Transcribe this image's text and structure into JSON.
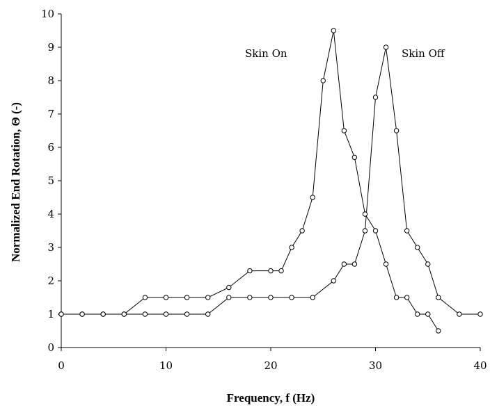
{
  "chart_data": {
    "type": "line",
    "title": "",
    "xlabel": "Frequency, f (Hz)",
    "ylabel": "Normalized End Rotation, Θ (-)",
    "xlim": [
      0,
      40
    ],
    "ylim": [
      0,
      10
    ],
    "xticks": [
      0,
      10,
      20,
      30,
      40
    ],
    "yticks": [
      0,
      1,
      2,
      3,
      4,
      5,
      6,
      7,
      8,
      9,
      10
    ],
    "grid": false,
    "legend": "none",
    "annotations": [
      {
        "text": "Skin On",
        "series": 0
      },
      {
        "text": "Skin Off",
        "series": 1
      }
    ],
    "series": [
      {
        "x": [
          0,
          2,
          4,
          6,
          8,
          10,
          12,
          14,
          16,
          18,
          20,
          21,
          22,
          23,
          24,
          25,
          26,
          27,
          28,
          29,
          30,
          31,
          32,
          33,
          34,
          35,
          36
        ],
        "y": [
          1,
          1,
          1,
          1,
          1.5,
          1.5,
          1.5,
          1.5,
          1.8,
          2.3,
          2.3,
          2.3,
          3.0,
          3.5,
          4.5,
          8.0,
          9.5,
          6.5,
          5.7,
          4.0,
          3.5,
          2.5,
          1.5,
          1.5,
          1.0,
          1.0,
          0.5
        ]
      },
      {
        "x": [
          0,
          2,
          4,
          6,
          8,
          10,
          12,
          14,
          16,
          18,
          20,
          22,
          24,
          26,
          27,
          28,
          29,
          30,
          31,
          32,
          33,
          34,
          35,
          36,
          38,
          40
        ],
        "y": [
          1,
          1,
          1,
          1,
          1,
          1,
          1,
          1,
          1.5,
          1.5,
          1.5,
          1.5,
          1.5,
          2.0,
          2.5,
          2.5,
          3.5,
          7.5,
          9.0,
          6.5,
          3.5,
          3.0,
          2.5,
          1.5,
          1.0,
          1.0
        ]
      }
    ]
  }
}
